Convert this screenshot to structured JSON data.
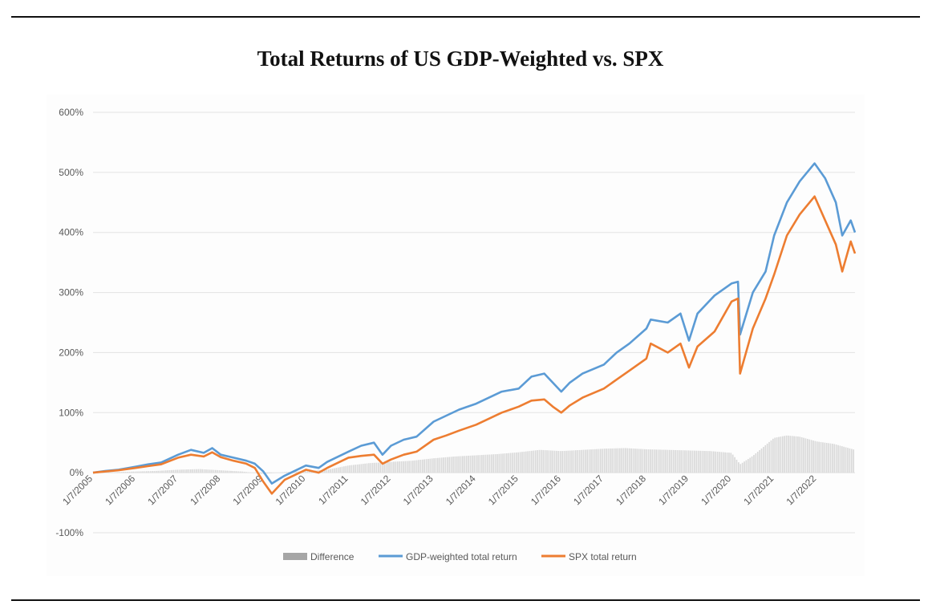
{
  "page": {
    "title": "Total Returns of US GDP-Weighted vs. SPX"
  },
  "colors": {
    "gdp": "#5b9bd5",
    "spx": "#ed7d31",
    "difference": "#d9d9d9",
    "grid": "#e3e3e3"
  },
  "chart_data": {
    "type": "line",
    "title": "Total Returns of US GDP-Weighted vs. SPX",
    "xlabel": "",
    "ylabel": "",
    "ylim": [
      -100,
      600
    ],
    "y_unit": "%",
    "y_ticks": [
      "600%",
      "500%",
      "400%",
      "300%",
      "200%",
      "100%",
      "0%",
      "-100%"
    ],
    "x_tick_labels": [
      "1/7/2005",
      "1/7/2006",
      "1/7/2007",
      "1/7/2008",
      "1/7/2009",
      "1/7/2010",
      "1/7/2011",
      "1/7/2012",
      "1/7/2013",
      "1/7/2014",
      "1/7/2015",
      "1/7/2016",
      "1/7/2017",
      "1/7/2018",
      "1/7/2019",
      "1/7/2020",
      "1/7/2021",
      "1/7/2022"
    ],
    "grid": true,
    "legend_position": "bottom",
    "x_range": [
      2005.0,
      2022.9
    ],
    "series": [
      {
        "name": "Difference",
        "kind": "bar",
        "x": [
          2005.0,
          2005.5,
          2006.0,
          2006.5,
          2007.0,
          2007.5,
          2008.0,
          2008.5,
          2009.0,
          2009.5,
          2010.0,
          2010.5,
          2011.0,
          2011.5,
          2012.0,
          2012.5,
          2013.0,
          2013.5,
          2014.0,
          2014.5,
          2015.0,
          2015.5,
          2016.0,
          2016.5,
          2017.0,
          2017.5,
          2018.0,
          2018.5,
          2019.0,
          2019.5,
          2020.0,
          2020.2,
          2020.5,
          2021.0,
          2021.3,
          2021.6,
          2022.0,
          2022.4,
          2022.9
        ],
        "values": [
          0,
          1,
          2,
          3,
          5,
          6,
          4,
          2,
          -2,
          1,
          3,
          5,
          12,
          16,
          18,
          20,
          24,
          27,
          29,
          31,
          34,
          38,
          36,
          38,
          40,
          41,
          39,
          38,
          37,
          36,
          33,
          14,
          28,
          58,
          62,
          60,
          52,
          48,
          38
        ]
      },
      {
        "name": "GDP-weighted total return",
        "kind": "line",
        "x": [
          2005.0,
          2005.3,
          2005.6,
          2006.0,
          2006.3,
          2006.6,
          2007.0,
          2007.3,
          2007.6,
          2007.8,
          2008.0,
          2008.3,
          2008.6,
          2008.8,
          2009.0,
          2009.2,
          2009.5,
          2010.0,
          2010.3,
          2010.5,
          2011.0,
          2011.3,
          2011.6,
          2011.8,
          2012.0,
          2012.3,
          2012.6,
          2013.0,
          2013.3,
          2013.6,
          2014.0,
          2014.3,
          2014.6,
          2015.0,
          2015.3,
          2015.6,
          2015.8,
          2016.0,
          2016.2,
          2016.5,
          2017.0,
          2017.3,
          2017.6,
          2018.0,
          2018.1,
          2018.5,
          2018.8,
          2019.0,
          2019.2,
          2019.6,
          2020.0,
          2020.15,
          2020.2,
          2020.5,
          2020.8,
          2021.0,
          2021.3,
          2021.6,
          2021.95,
          2022.2,
          2022.45,
          2022.6,
          2022.8,
          2022.9
        ],
        "values": [
          0,
          3,
          5,
          10,
          14,
          17,
          30,
          38,
          33,
          41,
          30,
          25,
          20,
          15,
          2,
          -18,
          -5,
          12,
          8,
          18,
          35,
          45,
          50,
          30,
          45,
          55,
          60,
          85,
          95,
          105,
          115,
          125,
          135,
          140,
          160,
          165,
          150,
          135,
          150,
          165,
          180,
          200,
          215,
          240,
          255,
          250,
          265,
          220,
          265,
          295,
          315,
          318,
          230,
          300,
          335,
          395,
          450,
          485,
          515,
          490,
          450,
          395,
          420,
          400
        ]
      },
      {
        "name": "SPX total return",
        "kind": "line",
        "x": [
          2005.0,
          2005.3,
          2005.6,
          2006.0,
          2006.3,
          2006.6,
          2007.0,
          2007.3,
          2007.6,
          2007.8,
          2008.0,
          2008.3,
          2008.6,
          2008.8,
          2009.0,
          2009.2,
          2009.5,
          2010.0,
          2010.3,
          2010.5,
          2011.0,
          2011.3,
          2011.6,
          2011.8,
          2012.0,
          2012.3,
          2012.6,
          2013.0,
          2013.3,
          2013.6,
          2014.0,
          2014.3,
          2014.6,
          2015.0,
          2015.3,
          2015.6,
          2015.8,
          2016.0,
          2016.2,
          2016.5,
          2017.0,
          2017.3,
          2017.6,
          2018.0,
          2018.1,
          2018.5,
          2018.8,
          2019.0,
          2019.2,
          2019.6,
          2020.0,
          2020.15,
          2020.2,
          2020.5,
          2020.8,
          2021.0,
          2021.3,
          2021.6,
          2021.95,
          2022.2,
          2022.45,
          2022.6,
          2022.8,
          2022.9
        ],
        "values": [
          0,
          2,
          4,
          8,
          11,
          14,
          25,
          30,
          27,
          34,
          26,
          20,
          15,
          8,
          -15,
          -35,
          -12,
          5,
          0,
          8,
          25,
          28,
          30,
          15,
          22,
          30,
          35,
          55,
          62,
          70,
          80,
          90,
          100,
          110,
          120,
          122,
          110,
          100,
          112,
          125,
          140,
          155,
          170,
          190,
          215,
          200,
          215,
          175,
          210,
          235,
          285,
          290,
          165,
          240,
          290,
          330,
          395,
          430,
          460,
          420,
          380,
          335,
          385,
          365
        ]
      }
    ]
  }
}
